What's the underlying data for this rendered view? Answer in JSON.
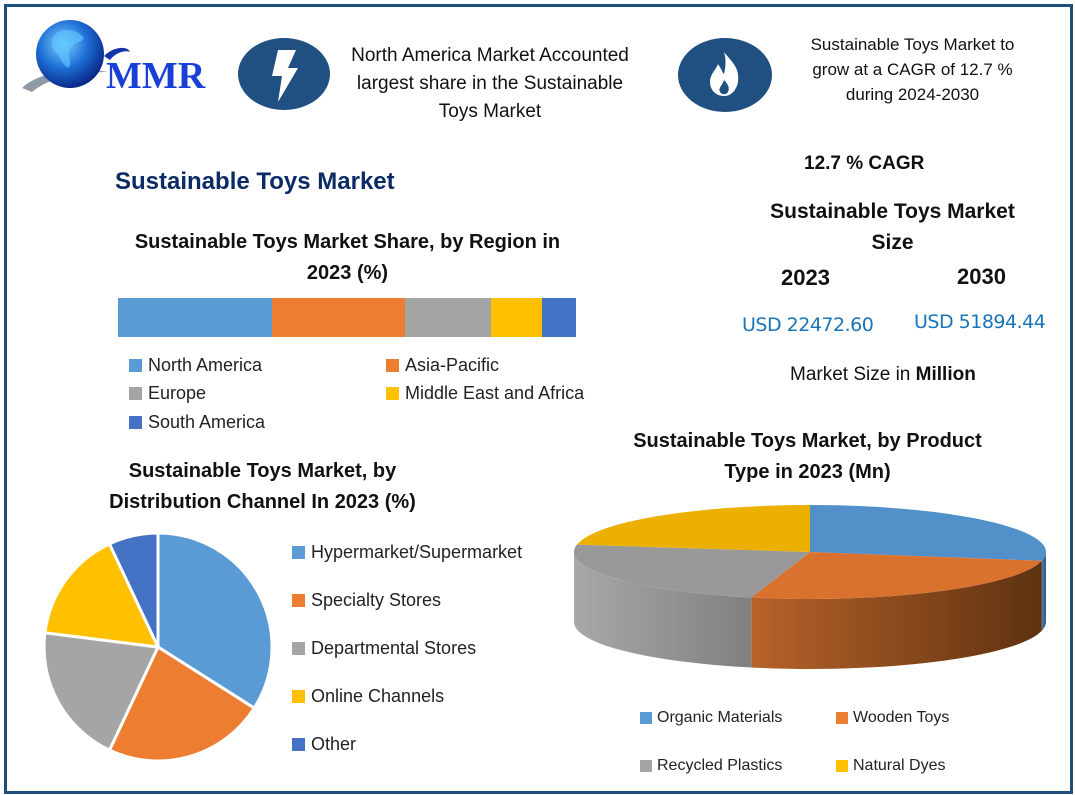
{
  "logo": {
    "text": "MMR"
  },
  "highlights": [
    {
      "icon": "lightning-icon",
      "text_lines": [
        "North America Market Accounted",
        "largest share in the Sustainable",
        "Toys Market"
      ]
    },
    {
      "icon": "flame-icon",
      "text_lines": [
        "Sustainable Toys Market to",
        "grow at a CAGR of 12.7 %",
        "during 2024-2030"
      ]
    }
  ],
  "main_title": "Sustainable Toys Market",
  "stats": {
    "cagr": "12.7 % CAGR",
    "size_title_lines": [
      "Sustainable Toys Market",
      "Size"
    ],
    "year_a": "2023",
    "year_b": "2030",
    "value_a": "USD 22472.60",
    "value_b": "USD 51894.44",
    "unit_prefix": "Market Size in ",
    "unit_bold": "Million"
  },
  "colors": {
    "frame": "#1f4e79",
    "icon_bg": "#1f5081",
    "title": "#0b2a66",
    "usd": "#1a74b8",
    "blue": "#5b9bd5",
    "orange": "#ed7d31",
    "gray": "#a5a5a5",
    "yellow": "#ffc000",
    "darkblue": "#4472c4"
  },
  "chart_data": [
    {
      "type": "bar",
      "subtype": "stacked-100",
      "title_lines": [
        "Sustainable Toys Market Share, by Region in",
        "2023 (%)"
      ],
      "categories": [
        "North America",
        "Asia-Pacific",
        "Europe",
        "Middle East and Africa",
        "South America"
      ],
      "values": [
        33.6,
        29.0,
        18.8,
        11.1,
        7.5
      ],
      "colors": [
        "#5b9bd5",
        "#ed7d31",
        "#a5a5a5",
        "#ffc000",
        "#4472c4"
      ],
      "legend": "bottom"
    },
    {
      "type": "pie",
      "title_lines": [
        "Sustainable Toys Market, by",
        "Distribution Channel In 2023 (%)"
      ],
      "categories": [
        "Hypermarket/Supermarket",
        "Specialty Stores",
        "Departmental Stores",
        "Online Channels",
        "Other"
      ],
      "values": [
        34,
        23,
        20,
        16,
        7
      ],
      "colors": [
        "#5b9bd5",
        "#ed7d31",
        "#a5a5a5",
        "#ffc000",
        "#4472c4"
      ],
      "legend": "right"
    },
    {
      "type": "pie",
      "subtype": "3d",
      "title_lines": [
        "Sustainable Toys Market, by Product",
        "Type in 2023 (Mn)"
      ],
      "categories": [
        "Organic Materials",
        "Wooden Toys",
        "Recycled Plastics",
        "Natural Dyes"
      ],
      "values": [
        28,
        26,
        23.5,
        22.5
      ],
      "colors": [
        "#5190c9",
        "#d9722f",
        "#999999",
        "#ecb000"
      ],
      "side_colors": [
        "#3d6e9b",
        "#6b3a12",
        "#8a8a8a",
        "#b38600"
      ],
      "legend": "bottom"
    }
  ]
}
